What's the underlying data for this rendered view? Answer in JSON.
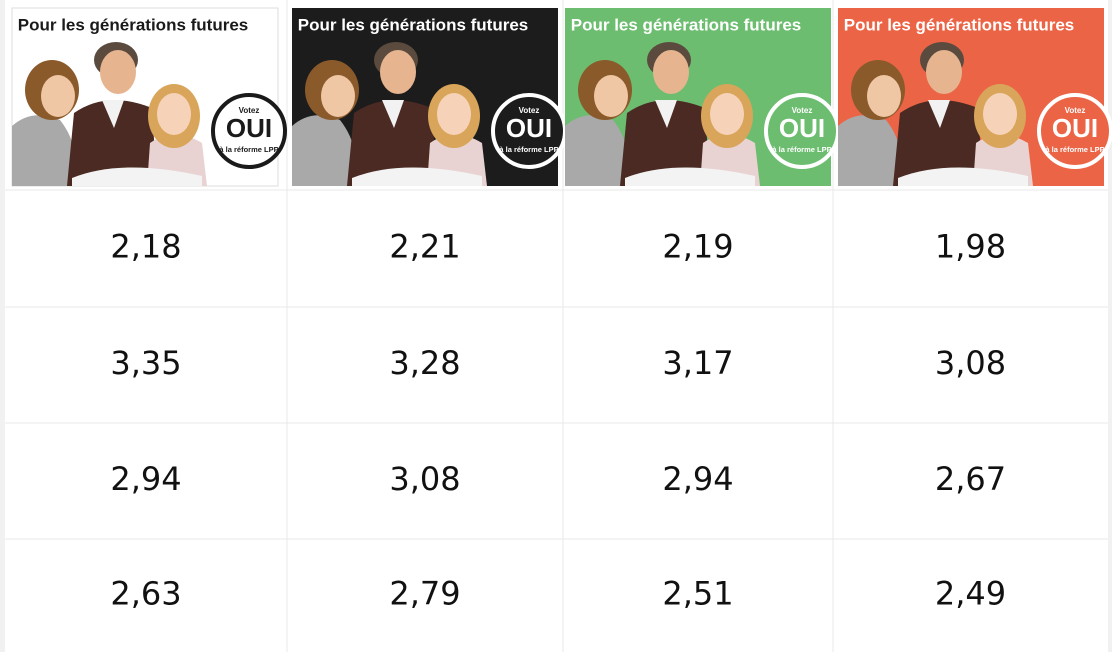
{
  "posters": [
    {
      "title": "Pour les générations futures",
      "badge": {
        "top": "Votez",
        "main": "OUI",
        "bottom": "à la réforme LPP"
      },
      "background": "#ffffff"
    },
    {
      "title": "Pour les générations futures",
      "badge": {
        "top": "Votez",
        "main": "OUI",
        "bottom": "à la réforme LPP"
      },
      "background": "#1c1c1c"
    },
    {
      "title": "Pour les générations futures",
      "badge": {
        "top": "Votez",
        "main": "OUI",
        "bottom": "à la réforme LPP"
      },
      "background": "#6cbd6f"
    },
    {
      "title": "Pour les générations futures",
      "badge": {
        "top": "Votez",
        "main": "OUI",
        "bottom": "à la réforme LPP"
      },
      "background": "#ec6446"
    }
  ],
  "table": {
    "rows": [
      [
        "2,18",
        "2,21",
        "2,19",
        "1,98"
      ],
      [
        "3,35",
        "3,28",
        "3,17",
        "3,08"
      ],
      [
        "2,94",
        "3,08",
        "2,94",
        "2,67"
      ],
      [
        "2,63",
        "2,79",
        "2,51",
        "2,49"
      ]
    ]
  }
}
